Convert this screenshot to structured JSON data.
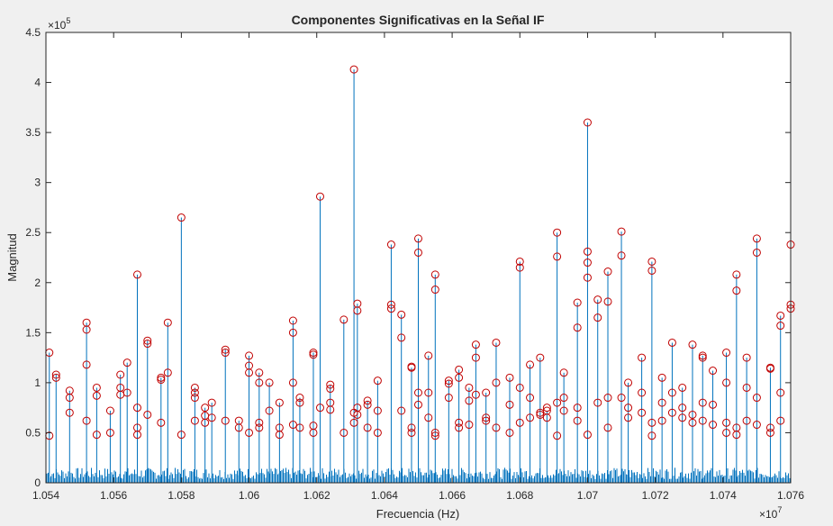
{
  "chart_data": {
    "type": "stem",
    "title": "Componentes Significativas en la Señal IF",
    "xlabel": "Frecuencia (Hz)",
    "ylabel": "Magnitud",
    "x_exponent_label": "×10",
    "x_exponent_power": "7",
    "y_exponent_label": "×10",
    "y_exponent_power": "5",
    "xlim": [
      1.054,
      1.076
    ],
    "ylim": [
      0,
      4.5
    ],
    "x_ticks": [
      1.054,
      1.056,
      1.058,
      1.06,
      1.062,
      1.064,
      1.066,
      1.068,
      1.07,
      1.072,
      1.074,
      1.076
    ],
    "x_tick_labels": [
      "1.054",
      "1.056",
      "1.058",
      "1.06",
      "1.062",
      "1.064",
      "1.066",
      "1.068",
      "1.07",
      "1.072",
      "1.074",
      "1.076"
    ],
    "y_ticks": [
      0,
      0.5,
      1,
      1.5,
      2,
      2.5,
      3,
      3.5,
      4,
      4.5
    ],
    "y_tick_labels": [
      "0",
      "0.5",
      "1",
      "1.5",
      "2",
      "2.5",
      "3",
      "3.5",
      "4",
      "4.5"
    ],
    "grid": false,
    "noise_floor_level": 0.15,
    "colors": {
      "stem": "#0072BD",
      "marker": "#C00000",
      "axes_bg": "#ffffff",
      "figure_bg": "#f0f0f0",
      "axis": "#262626"
    },
    "series": [
      {
        "name": "",
        "style": "stem-with-circle-markers",
        "x": [
          1.0541,
          1.0543,
          1.0547,
          1.0552,
          1.0555,
          1.0559,
          1.0562,
          1.0564,
          1.0567,
          1.057,
          1.0574,
          1.0576,
          1.058,
          1.0584,
          1.0587,
          1.0589,
          1.0593,
          1.0597,
          1.06,
          1.0603,
          1.0606,
          1.0609,
          1.0613,
          1.0615,
          1.0619,
          1.0621,
          1.0624,
          1.0628,
          1.0631,
          1.0632,
          1.0635,
          1.0638,
          1.0642,
          1.0645,
          1.0648,
          1.065,
          1.0653,
          1.0655,
          1.0659,
          1.0662,
          1.0665,
          1.0667,
          1.067,
          1.0673,
          1.0677,
          1.068,
          1.0683,
          1.0686,
          1.0688,
          1.0691,
          1.0693,
          1.0697,
          1.07,
          1.0703,
          1.0706,
          1.071,
          1.0712,
          1.0716,
          1.0719,
          1.0722,
          1.0725,
          1.0728,
          1.0731,
          1.0734,
          1.0737,
          1.0741,
          1.0744,
          1.0747,
          1.075,
          1.0754,
          1.0757,
          1.076
        ],
        "y": [
          1.3,
          1.08,
          0.92,
          1.6,
          0.95,
          0.72,
          1.08,
          1.2,
          2.08,
          1.42,
          1.05,
          1.6,
          2.65,
          0.95,
          0.75,
          0.8,
          1.33,
          0.62,
          1.27,
          1.1,
          1.0,
          0.8,
          1.62,
          0.85,
          1.3,
          2.86,
          0.98,
          1.63,
          4.13,
          1.79,
          0.82,
          1.02,
          2.38,
          1.68,
          1.15,
          2.44,
          1.27,
          2.08,
          1.02,
          1.13,
          0.95,
          1.38,
          0.9,
          1.4,
          1.05,
          2.21,
          1.18,
          1.25,
          0.72,
          2.5,
          1.1,
          1.8,
          3.6,
          1.83,
          2.11,
          2.51,
          1.0,
          1.25,
          2.21,
          1.05,
          1.4,
          0.95,
          1.38,
          1.27,
          1.12,
          1.3,
          2.08,
          1.25,
          2.44,
          1.15,
          1.67,
          2.38
        ],
        "marker_sets": [
          [
            1.3,
            0.47
          ],
          [
            1.08,
            1.05
          ],
          [
            0.92,
            0.85,
            0.7
          ],
          [
            1.6,
            1.53,
            1.18,
            0.62
          ],
          [
            0.95,
            0.87,
            0.48
          ],
          [
            0.72,
            0.5
          ],
          [
            1.08,
            0.95,
            0.88
          ],
          [
            1.2,
            0.9
          ],
          [
            2.08,
            0.75,
            0.55,
            0.48
          ],
          [
            1.42,
            1.39,
            0.68
          ],
          [
            1.05,
            1.03,
            0.6
          ],
          [
            1.6,
            1.1
          ],
          [
            2.65,
            0.48
          ],
          [
            0.95,
            0.9,
            0.85,
            0.62
          ],
          [
            0.75,
            0.67,
            0.6
          ],
          [
            0.8,
            0.65
          ],
          [
            1.33,
            1.3,
            0.62
          ],
          [
            0.62,
            0.55
          ],
          [
            1.27,
            1.17,
            1.1,
            0.5
          ],
          [
            1.1,
            1.0,
            0.55,
            0.6
          ],
          [
            1.0,
            0.72
          ],
          [
            0.8,
            0.55,
            0.48
          ],
          [
            1.62,
            1.5,
            1.0,
            0.58
          ],
          [
            0.85,
            0.8,
            0.55
          ],
          [
            1.3,
            1.28,
            0.57,
            0.5
          ],
          [
            2.86,
            0.75
          ],
          [
            0.98,
            0.94,
            0.8,
            0.73
          ],
          [
            1.63,
            0.5
          ],
          [
            4.13,
            0.7,
            0.6
          ],
          [
            1.79,
            1.72,
            0.75,
            0.68
          ],
          [
            0.82,
            0.78,
            0.55
          ],
          [
            1.02,
            0.72,
            0.5
          ],
          [
            2.38,
            1.78,
            1.74
          ],
          [
            1.68,
            1.45,
            0.72
          ],
          [
            1.15,
            1.16,
            0.55,
            0.5
          ],
          [
            2.44,
            2.3,
            0.9,
            0.78
          ],
          [
            1.27,
            0.9,
            0.65
          ],
          [
            2.08,
            1.93,
            0.5,
            0.47
          ],
          [
            1.02,
            0.99,
            0.85
          ],
          [
            1.13,
            1.05,
            0.6,
            0.55
          ],
          [
            0.95,
            0.82,
            0.58
          ],
          [
            1.38,
            1.25,
            0.88
          ],
          [
            0.9,
            0.65,
            0.62
          ],
          [
            1.4,
            1.0,
            0.55
          ],
          [
            1.05,
            0.78,
            0.5
          ],
          [
            2.21,
            2.15,
            0.95,
            0.6
          ],
          [
            1.18,
            0.85,
            0.65
          ],
          [
            1.25,
            0.68,
            0.7
          ],
          [
            0.72,
            0.75,
            0.65
          ],
          [
            2.5,
            2.26,
            0.8,
            0.47
          ],
          [
            1.1,
            0.85,
            0.72
          ],
          [
            1.8,
            1.55,
            0.75,
            0.62
          ],
          [
            3.6,
            2.31,
            2.2,
            2.05,
            0.48
          ],
          [
            1.83,
            1.65,
            0.8
          ],
          [
            2.11,
            1.81,
            0.85,
            0.55
          ],
          [
            2.51,
            2.27,
            0.85
          ],
          [
            1.0,
            0.75,
            0.65
          ],
          [
            1.25,
            0.9,
            0.7
          ],
          [
            2.21,
            2.12,
            0.6,
            0.47
          ],
          [
            1.05,
            0.8,
            0.62
          ],
          [
            1.4,
            0.9,
            0.7
          ],
          [
            0.95,
            0.75,
            0.65
          ],
          [
            1.38,
            0.68,
            0.6
          ],
          [
            1.27,
            1.25,
            0.8,
            0.62
          ],
          [
            1.12,
            0.78,
            0.58
          ],
          [
            1.3,
            1.0,
            0.6,
            0.5
          ],
          [
            2.08,
            1.92,
            0.55,
            0.48
          ],
          [
            1.25,
            0.95,
            0.62
          ],
          [
            2.44,
            2.3,
            0.85,
            0.58
          ],
          [
            1.15,
            1.14,
            0.55,
            0.5
          ],
          [
            1.67,
            1.57,
            0.9,
            0.62
          ],
          [
            2.38,
            1.78,
            1.74
          ]
        ]
      }
    ]
  }
}
